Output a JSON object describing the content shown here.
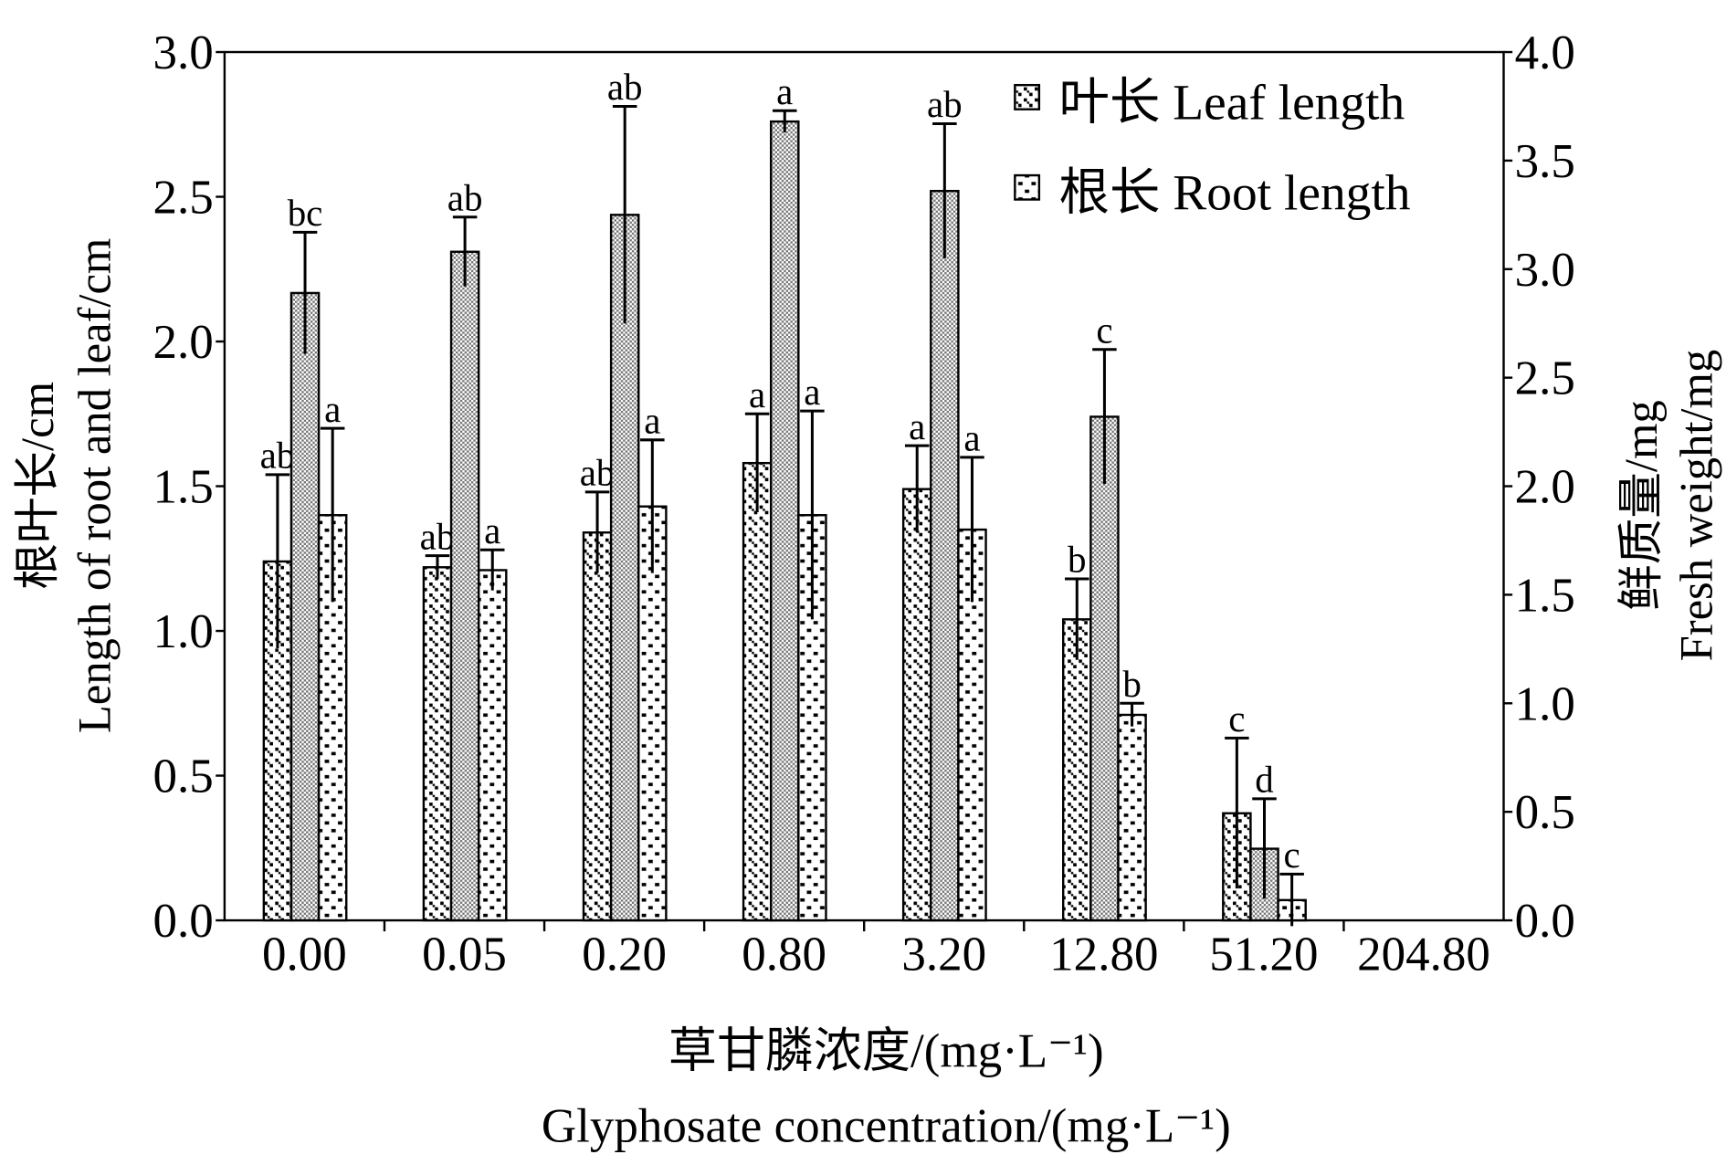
{
  "chart_data": {
    "type": "bar",
    "y_label": [
      "根叶长/cm",
      "Length of root and leaf/cm"
    ],
    "y2_label": [
      "鲜质量/mg",
      "Fresh weight/mg"
    ],
    "x_label": [
      "草甘膦浓度/(mg·L⁻¹)",
      "Glyphosate concentration/(mg·L⁻¹)"
    ],
    "categories": [
      "0.00",
      "0.05",
      "0.20",
      "0.80",
      "3.20",
      "12.80",
      "51.20",
      "204.80"
    ],
    "series": [
      {
        "name": "叶长 Leaf length",
        "color": "#000000",
        "pattern": "leaf",
        "axis": "y",
        "values": [
          1.24,
          1.22,
          1.34,
          1.58,
          1.49,
          1.04,
          0.37,
          null
        ],
        "errors": [
          0.3,
          0.04,
          0.14,
          0.17,
          0.15,
          0.14,
          0.26,
          null
        ],
        "labels": [
          "ab",
          "ab",
          "ab",
          "a",
          "a",
          "b",
          "c",
          null
        ]
      },
      {
        "color": "#9a9a9a",
        "pattern": "fresh",
        "axis": "y2",
        "values": [
          2.89,
          3.08,
          3.25,
          3.68,
          3.36,
          2.32,
          0.33,
          null
        ],
        "errors": [
          0.28,
          0.16,
          0.5,
          0.05,
          0.31,
          0.31,
          0.23,
          null
        ],
        "labels": [
          "bc",
          "ab",
          "ab",
          "a",
          "ab",
          "c",
          "d",
          null
        ]
      },
      {
        "name": "根长 Root length",
        "color": "#000000",
        "pattern": "root",
        "axis": "y",
        "values": [
          1.4,
          1.21,
          1.43,
          1.4,
          1.35,
          0.71,
          0.07,
          null
        ],
        "errors": [
          0.3,
          0.07,
          0.23,
          0.36,
          0.25,
          0.04,
          0.09,
          null
        ],
        "labels": [
          "a",
          "a",
          "a",
          "a",
          "a",
          "b",
          "c",
          null
        ]
      }
    ],
    "ylim": [
      0,
      3
    ],
    "yticks": [
      {
        "value": 0,
        "label": "0.0"
      },
      0.5,
      {
        "value": 1,
        "label": "1.0"
      },
      1.5,
      {
        "value": 2,
        "label": "2.0"
      },
      2.5,
      {
        "value": 3,
        "label": "3.0"
      }
    ],
    "y2lim": [
      0,
      4
    ],
    "y2ticks": [
      {
        "value": 0,
        "label": "0.0"
      },
      0.5,
      {
        "value": 1,
        "label": "1.0"
      },
      1.5,
      {
        "value": 2,
        "label": "2.0"
      },
      2.5,
      {
        "value": 3,
        "label": "3.0"
      },
      3.5,
      {
        "value": 4,
        "label": "4.0"
      }
    ],
    "legend": "upper right"
  }
}
